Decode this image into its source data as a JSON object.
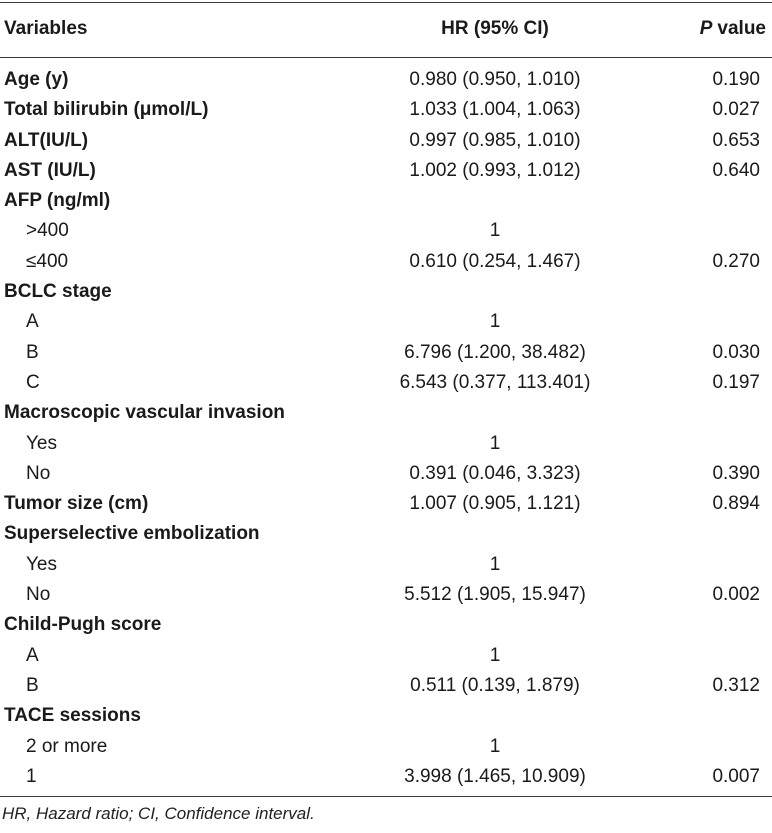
{
  "header": {
    "variables": "Variables",
    "hr": "HR (95% CI)",
    "p_italic": "P",
    "p_rest": "value"
  },
  "rows": [
    {
      "label": "Age (y)",
      "hr": "0.980 (0.950, 1.010)",
      "p": "0.190",
      "type": "group"
    },
    {
      "label": "Total bilirubin (μmol/L)",
      "hr": "1.033 (1.004, 1.063)",
      "p": "0.027",
      "type": "group"
    },
    {
      "label": "ALT(IU/L)",
      "hr": "0.997 (0.985, 1.010)",
      "p": "0.653",
      "type": "group"
    },
    {
      "label": "AST (IU/L)",
      "hr": "1.002 (0.993, 1.012)",
      "p": "0.640",
      "type": "group"
    },
    {
      "label": "AFP (ng/ml)",
      "hr": "",
      "p": "",
      "type": "group"
    },
    {
      "label": ">400",
      "hr": "1",
      "p": "",
      "type": "sub"
    },
    {
      "label": "≤400",
      "hr": "0.610 (0.254, 1.467)",
      "p": "0.270",
      "type": "sub"
    },
    {
      "label": "BCLC stage",
      "hr": "",
      "p": "",
      "type": "group"
    },
    {
      "label": "A",
      "hr": "1",
      "p": "",
      "type": "sub"
    },
    {
      "label": "B",
      "hr": "6.796 (1.200, 38.482)",
      "p": "0.030",
      "type": "sub"
    },
    {
      "label": "C",
      "hr": "6.543 (0.377, 113.401)",
      "p": "0.197",
      "type": "sub"
    },
    {
      "label": "Macroscopic vascular invasion",
      "hr": "",
      "p": "",
      "type": "group"
    },
    {
      "label": "Yes",
      "hr": "1",
      "p": "",
      "type": "sub"
    },
    {
      "label": "No",
      "hr": "0.391 (0.046, 3.323)",
      "p": "0.390",
      "type": "sub"
    },
    {
      "label": "Tumor size (cm)",
      "hr": "1.007 (0.905, 1.121)",
      "p": "0.894",
      "type": "group"
    },
    {
      "label": "Superselective embolization",
      "hr": "",
      "p": "",
      "type": "group"
    },
    {
      "label": "Yes",
      "hr": "1",
      "p": "",
      "type": "sub"
    },
    {
      "label": "No",
      "hr": "5.512 (1.905, 15.947)",
      "p": "0.002",
      "type": "sub"
    },
    {
      "label": "Child-Pugh score",
      "hr": "",
      "p": "",
      "type": "group"
    },
    {
      "label": "A",
      "hr": "1",
      "p": "",
      "type": "sub"
    },
    {
      "label": "B",
      "hr": "0.511 (0.139, 1.879)",
      "p": "0.312",
      "type": "sub"
    },
    {
      "label": "TACE sessions",
      "hr": "",
      "p": "",
      "type": "group"
    },
    {
      "label": "2 or more",
      "hr": "1",
      "p": "",
      "type": "sub"
    },
    {
      "label": "1",
      "hr": "3.998 (1.465, 10.909)",
      "p": "0.007",
      "type": "sub"
    }
  ],
  "footnote": "HR, Hazard ratio; CI, Confidence interval."
}
